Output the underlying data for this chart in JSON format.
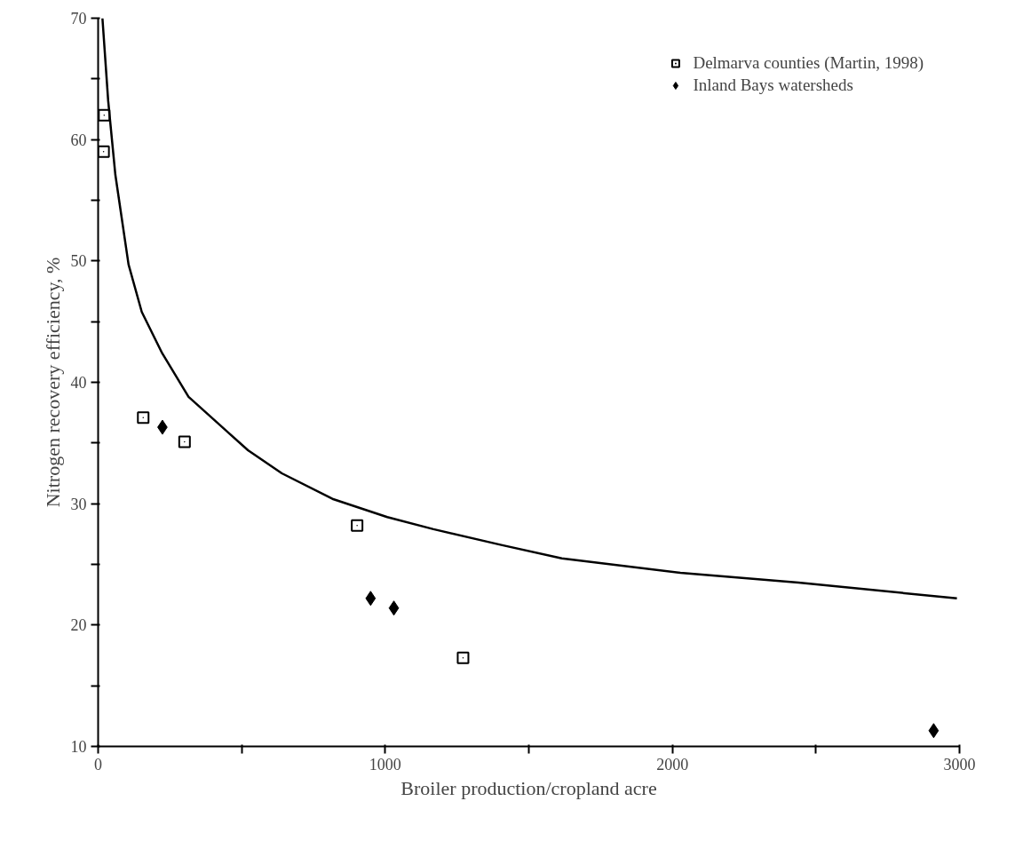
{
  "chart_data": {
    "type": "scatter",
    "xlabel": "Broiler production/cropland acre",
    "ylabel": "Nitrogen recovery efficiency, %",
    "xlim": [
      0,
      3000
    ],
    "ylim": [
      10,
      70
    ],
    "xticks": [
      0,
      {
        "value": 500,
        "label": null
      },
      1000,
      {
        "value": 1500,
        "label": null
      },
      2000,
      {
        "value": 2500,
        "label": null
      },
      3000
    ],
    "yticks": [
      10,
      {
        "value": 15,
        "label": null
      },
      20,
      {
        "value": 25,
        "label": null
      },
      30,
      {
        "value": 35,
        "label": null
      },
      40,
      {
        "value": 45,
        "label": null
      },
      50,
      {
        "value": 55,
        "label": null
      },
      60,
      {
        "value": 65,
        "label": null
      },
      70
    ],
    "grid": false,
    "legend": "top right",
    "series": [
      {
        "name": "Delmarva counties (Martin, 1998)",
        "color": "#000000",
        "marker": "square",
        "x": [
          21,
          19,
          157,
          301,
          902,
          1271
        ],
        "values": [
          62,
          59,
          37.1,
          35.1,
          28.2,
          17.3
        ]
      },
      {
        "name": "Inland Bays watersheds",
        "color": "#000000",
        "marker": "diamond",
        "x": [
          224,
          949,
          1030,
          2910
        ],
        "values": [
          36.3,
          22.2,
          21.4,
          11.3
        ]
      },
      {
        "type": "line",
        "color": "#000000",
        "marker": "none",
        "line_style": "solid",
        "x": [
          15,
          35,
          60,
          106,
          152,
          223,
          315,
          522,
          640,
          816,
          1007,
          1168,
          1404,
          1615,
          2028,
          2439,
          2991
        ],
        "values": [
          70,
          63.2,
          57.1,
          49.7,
          45.8,
          42.4,
          38.8,
          34.4,
          32.5,
          30.4,
          28.9,
          27.9,
          26.6,
          25.5,
          24.3,
          23.5,
          22.2
        ]
      }
    ]
  }
}
